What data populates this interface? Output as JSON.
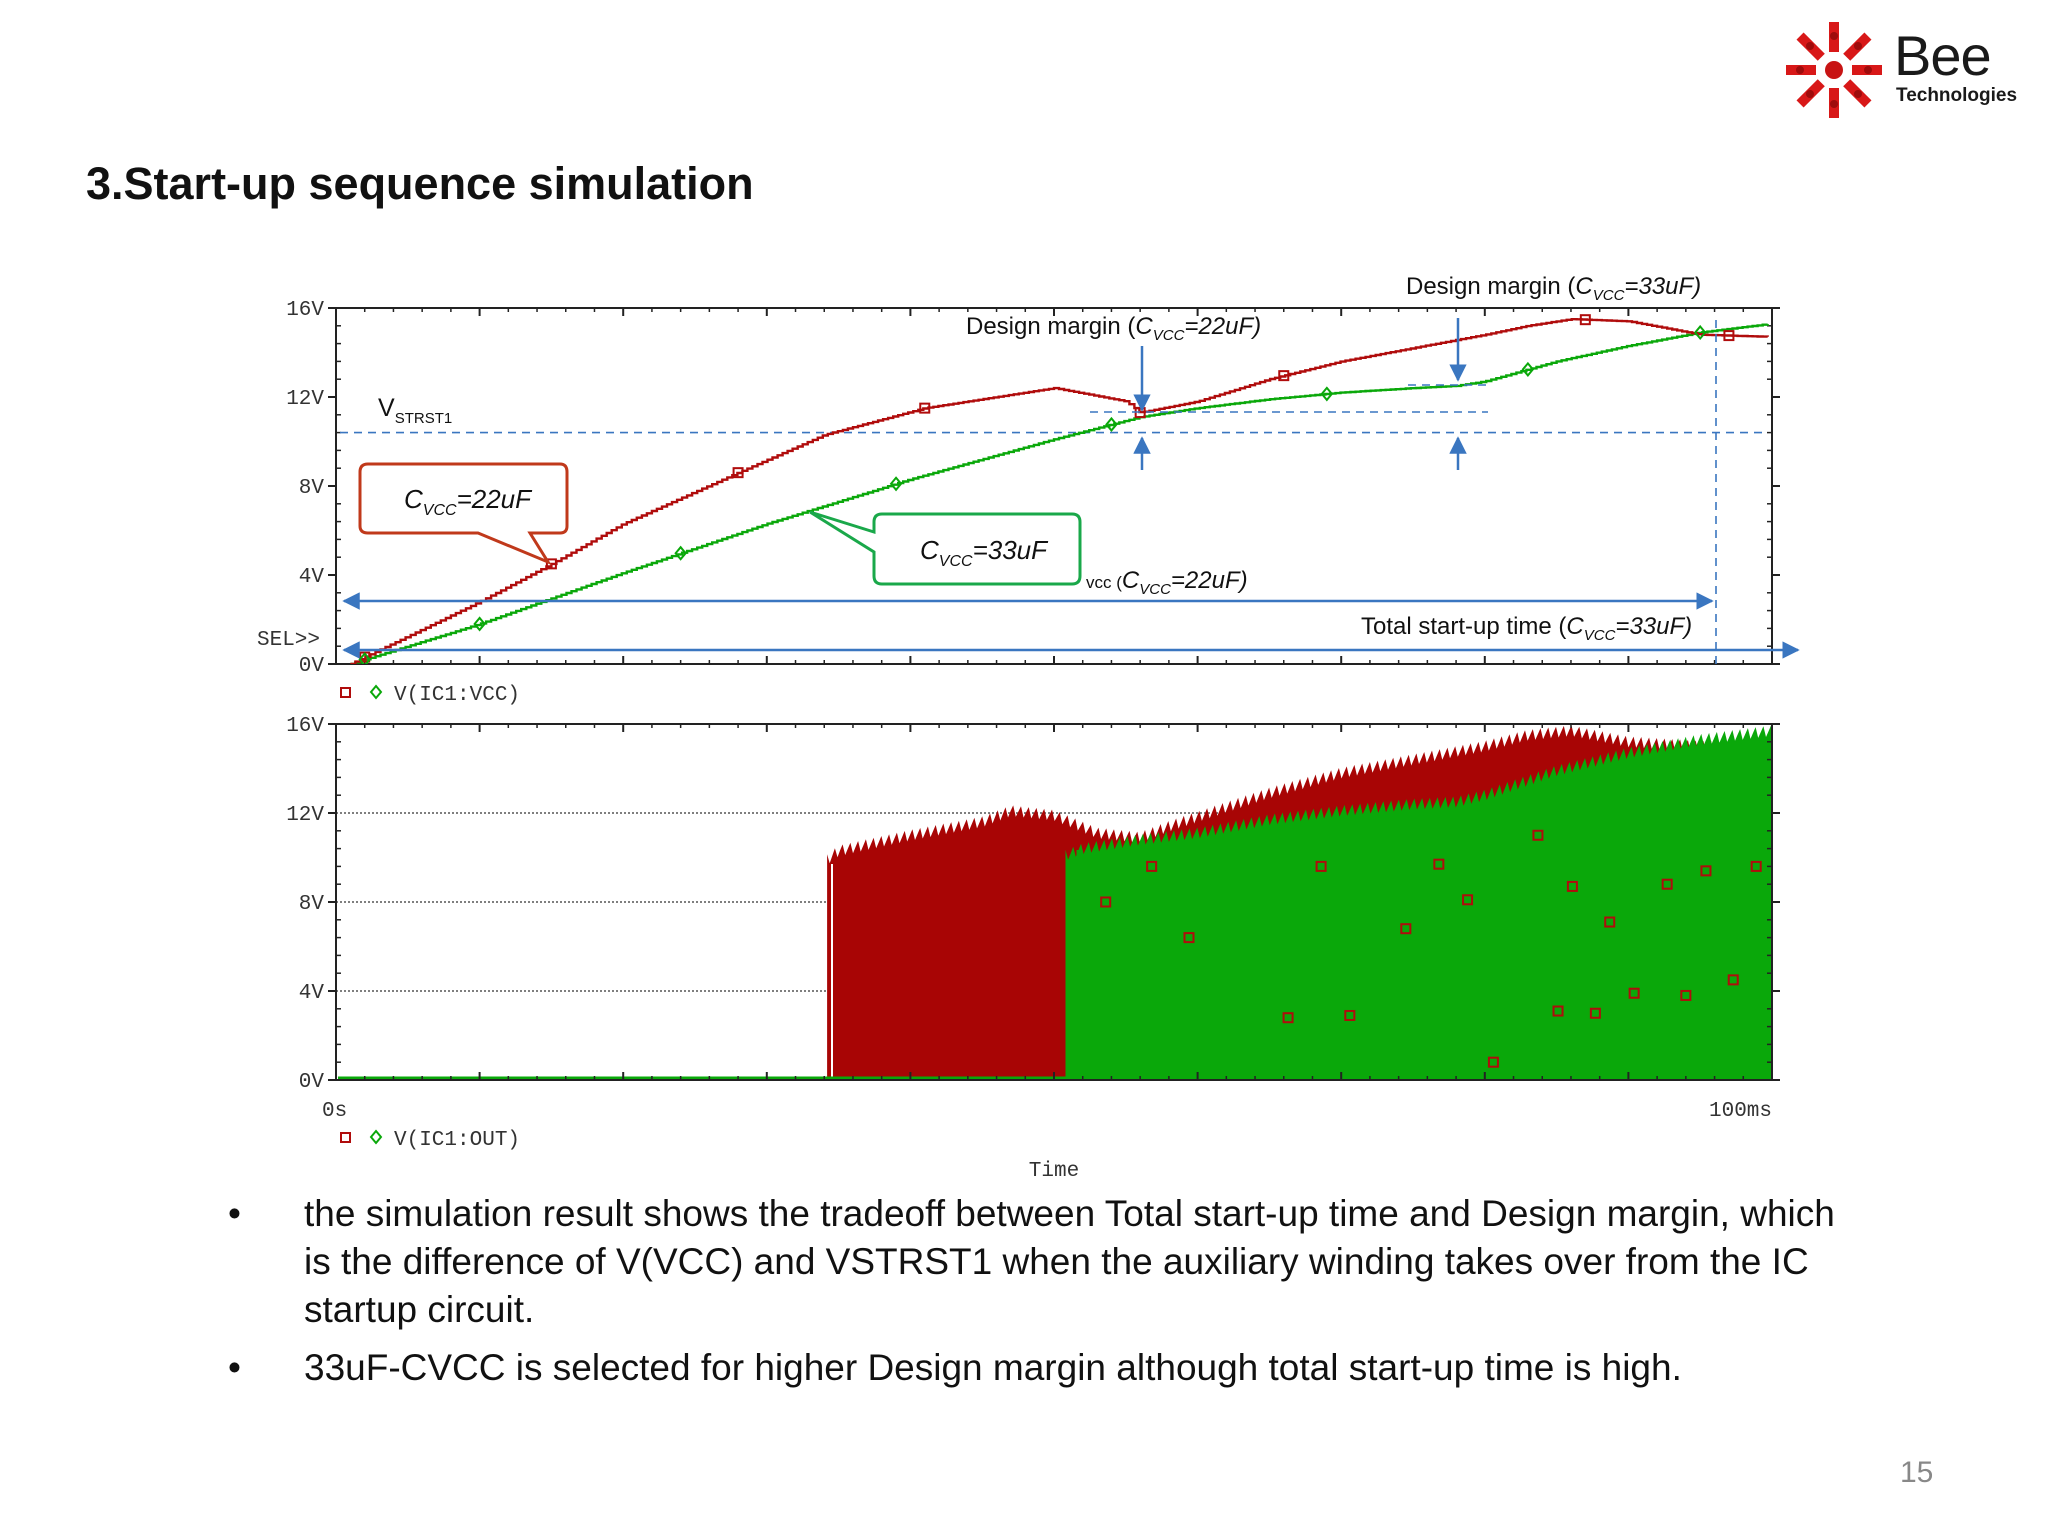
{
  "slide": {
    "title": "3.Start-up sequence simulation",
    "page_number": "15",
    "logo": {
      "word": "Bee",
      "sub": "Technologies"
    },
    "bullets": [
      "the simulation result shows the tradeoff between Total start-up time and Design margin, which is the difference of V(VCC) and VSTRST1 when the auxiliary winding takes over from the IC startup circuit.",
      "33uF-CVCC is selected for higher Design margin although total start-up time is high."
    ]
  },
  "colors": {
    "red": "#b00c0c",
    "green": "#0aa80a",
    "blue_annot": "#3a76c0",
    "callout_red": "#c0391b",
    "callout_green": "#1aa84a"
  },
  "annotations": {
    "design_margin_22": {
      "pre": "Design margin (",
      "c": "C",
      "sub": "VCC",
      "post": "=22uF)"
    },
    "design_margin_33": {
      "pre": "Design margin (",
      "c": "C",
      "sub": "VCC",
      "post": "=33uF)"
    },
    "vstrst1": {
      "main": "V",
      "sub": "STRST1"
    },
    "callout_22": {
      "c": "C",
      "sub": "VCC",
      "post": "=22uF"
    },
    "callout_33": {
      "c": "C",
      "sub": "VCC",
      "post": "=33uF"
    },
    "total_22": {
      "pre": "vcc (",
      "c": "C",
      "sub": "VCC",
      "post": "=22uF)"
    },
    "total_33": {
      "pre": "Total start-up time (",
      "c": "C",
      "sub": "VCC",
      "post": "=33uF)"
    },
    "sel": "SEL>>"
  },
  "chart_data": [
    {
      "type": "line",
      "legend": "V(IC1:VCC)",
      "y_ticks": [
        "0V",
        "4V",
        "8V",
        "12V",
        "16V"
      ],
      "ylim": [
        0,
        16
      ],
      "xlim": [
        0,
        100
      ],
      "vstrst1_level": 10.4,
      "series": [
        {
          "color": "red",
          "marker": "square",
          "x": [
            1,
            10,
            15,
            20,
            28,
            34,
            41,
            46,
            50,
            55,
            56,
            60,
            65,
            70,
            75,
            80,
            83,
            86,
            90,
            95,
            100
          ],
          "y": [
            0,
            2.8,
            4.5,
            6.3,
            8.6,
            10.3,
            11.5,
            12.0,
            12.4,
            11.8,
            11.3,
            11.8,
            12.8,
            13.6,
            14.2,
            14.8,
            15.2,
            15.5,
            15.4,
            14.8,
            14.7
          ],
          "markers_x": [
            2,
            15,
            28,
            41,
            56,
            66,
            87,
            97
          ]
        },
        {
          "color": "green",
          "marker": "diamond",
          "x": [
            1,
            10,
            20,
            30,
            40,
            50,
            53,
            56,
            60,
            65,
            70,
            75,
            78,
            80,
            85,
            90,
            95,
            100
          ],
          "y": [
            0,
            1.8,
            4.1,
            6.3,
            8.3,
            10.1,
            10.6,
            11.1,
            11.5,
            11.9,
            12.2,
            12.4,
            12.5,
            12.7,
            13.6,
            14.3,
            14.9,
            15.3
          ],
          "markers_x": [
            2,
            10,
            24,
            39,
            54,
            69,
            83,
            95
          ]
        }
      ]
    },
    {
      "type": "area",
      "legend": "V(IC1:OUT)",
      "y_ticks": [
        "0V",
        "4V",
        "8V",
        "12V",
        "16V"
      ],
      "x_ticks": [
        "0s",
        "100ms"
      ],
      "xlabel": "Time",
      "ylim": [
        0,
        16
      ],
      "xlim": [
        0,
        100
      ],
      "series": [
        {
          "color": "red",
          "fill_start_x": 34.2,
          "x": [
            34.2,
            35,
            40,
            45,
            47,
            50,
            53,
            56,
            58,
            65,
            70,
            75,
            80,
            83,
            86,
            90,
            95,
            100
          ],
          "y": [
            9.8,
            10.2,
            10.9,
            11.5,
            12.0,
            11.8,
            11.0,
            10.8,
            11.3,
            12.8,
            13.7,
            14.3,
            14.9,
            15.4,
            15.6,
            15.1,
            14.9,
            14.8
          ]
        },
        {
          "color": "green",
          "fill_start_x": 50.8,
          "x": [
            50.8,
            52,
            56,
            60,
            65,
            70,
            75,
            78,
            80,
            85,
            90,
            95,
            100
          ],
          "y": [
            10.0,
            10.3,
            10.7,
            11.0,
            11.6,
            12.0,
            12.3,
            12.4,
            12.7,
            13.8,
            14.6,
            15.2,
            15.6
          ]
        }
      ],
      "scatter_markers": [
        [
          53.6,
          8.0
        ],
        [
          56.8,
          9.6
        ],
        [
          59.4,
          6.4
        ],
        [
          66.3,
          2.8
        ],
        [
          68.6,
          9.6
        ],
        [
          70.6,
          2.9
        ],
        [
          74.5,
          6.8
        ],
        [
          76.8,
          9.7
        ],
        [
          78.8,
          8.1
        ],
        [
          80.6,
          0.8
        ],
        [
          83.7,
          11.0
        ],
        [
          85.1,
          3.1
        ],
        [
          86.1,
          8.7
        ],
        [
          87.7,
          3.0
        ],
        [
          88.7,
          7.1
        ],
        [
          90.4,
          3.9
        ],
        [
          92.7,
          8.8
        ],
        [
          94.0,
          3.8
        ],
        [
          95.4,
          9.4
        ],
        [
          97.3,
          4.5
        ],
        [
          98.9,
          9.6
        ]
      ]
    }
  ]
}
